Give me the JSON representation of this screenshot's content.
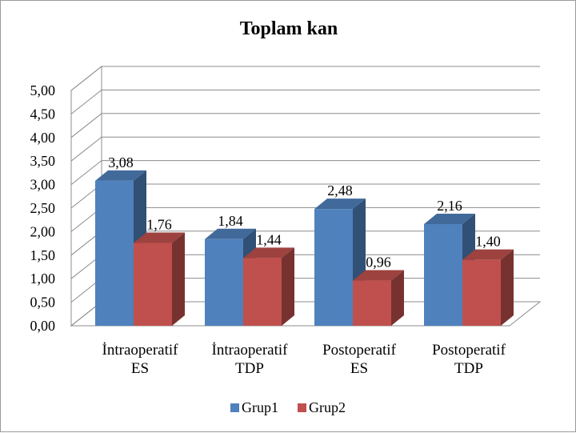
{
  "chart_data": {
    "type": "bar",
    "title": "Toplam kan",
    "categories": [
      [
        "İntraoperatif",
        "ES"
      ],
      [
        "İntraoperatif",
        "TDP"
      ],
      [
        "Postoperatif",
        "ES"
      ],
      [
        "Postoperatif",
        "TDP"
      ]
    ],
    "series": [
      {
        "name": "Grup1",
        "color": "#4f81bd",
        "values": [
          3.08,
          1.84,
          2.48,
          2.16
        ],
        "labels": [
          "3,08",
          "1,84",
          "2,48",
          "2,16"
        ]
      },
      {
        "name": "Grup2",
        "color": "#c0504d",
        "values": [
          1.76,
          1.44,
          0.96,
          1.4
        ],
        "labels": [
          "1,76",
          "1,44",
          "0,96",
          "1,40"
        ]
      }
    ],
    "ylim": [
      0,
      5
    ],
    "yticks": [
      "0,00",
      "0,50",
      "1,00",
      "1,50",
      "2,00",
      "2,50",
      "3,00",
      "3,50",
      "4,00",
      "4,50",
      "5,00"
    ],
    "xlabel": "",
    "ylabel": "",
    "grid": true,
    "legend_position": "bottom"
  }
}
